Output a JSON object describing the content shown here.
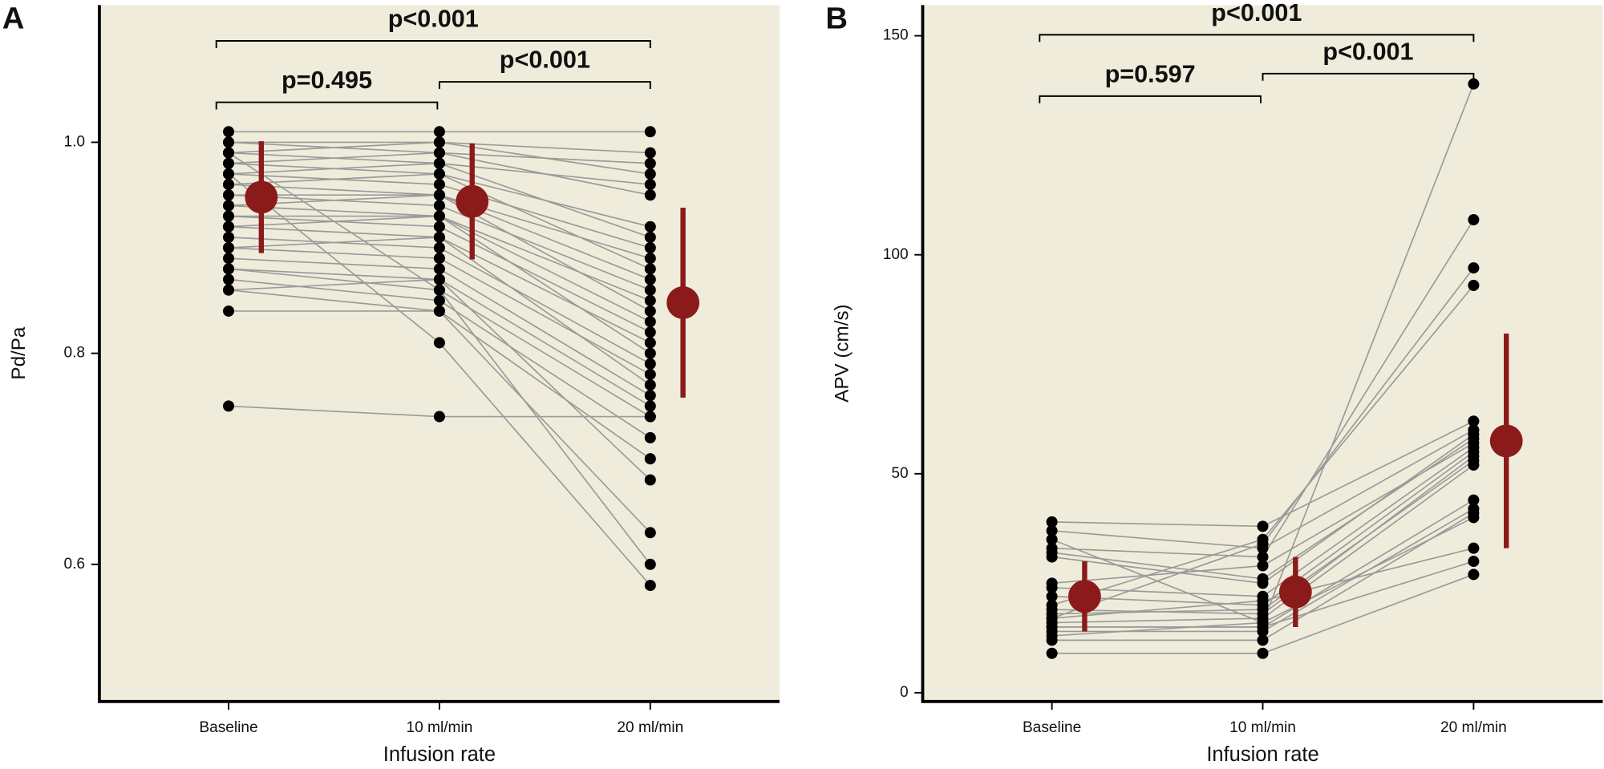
{
  "chart_data": [
    {
      "type": "paired-dot",
      "title": "A",
      "ylabel": "Pd/Pa",
      "xlabel": "Infusion rate",
      "categories": [
        "Baseline",
        "10 ml/min",
        "20 ml/min"
      ],
      "ylim": [
        0.47,
        1.13
      ],
      "yticks": [
        0.6,
        0.8,
        {
          "value": 1,
          "label": "1.0"
        }
      ],
      "point_color": "#000000",
      "line_color": "#9a9a9a",
      "mean_color": "#8b1a1a",
      "mean": [
        0.948,
        0.944,
        0.848
      ],
      "error": [
        0.053,
        0.055,
        0.09
      ],
      "comparisons": [
        {
          "from": 0,
          "to": 1,
          "label": "p=0.495"
        },
        {
          "from": 1,
          "to": 2,
          "label": "p<0.001"
        },
        {
          "from": 0,
          "to": 2,
          "label": "p<0.001"
        }
      ],
      "series": [
        {
          "values": [
            1.01,
            1.01,
            1.01
          ]
        },
        {
          "values": [
            1.0,
            1.0,
            0.99
          ]
        },
        {
          "values": [
            1.0,
            0.99,
            0.98
          ]
        },
        {
          "values": [
            0.99,
            1.0,
            0.97
          ]
        },
        {
          "values": [
            0.99,
            0.98,
            0.96
          ]
        },
        {
          "values": [
            0.98,
            0.99,
            0.95
          ]
        },
        {
          "values": [
            0.98,
            0.97,
            0.92
          ]
        },
        {
          "values": [
            0.97,
            0.98,
            0.91
          ]
        },
        {
          "values": [
            0.97,
            0.96,
            0.9
          ]
        },
        {
          "values": [
            0.96,
            0.95,
            0.89
          ]
        },
        {
          "values": [
            0.96,
            0.97,
            0.88
          ]
        },
        {
          "values": [
            0.95,
            0.95,
            0.87
          ]
        },
        {
          "values": [
            0.95,
            0.94,
            0.86
          ]
        },
        {
          "values": [
            0.94,
            0.93,
            0.85
          ]
        },
        {
          "values": [
            0.94,
            0.95,
            0.84
          ]
        },
        {
          "values": [
            0.93,
            0.93,
            0.83
          ]
        },
        {
          "values": [
            0.93,
            0.92,
            0.82
          ]
        },
        {
          "values": [
            0.92,
            0.91,
            0.81
          ]
        },
        {
          "values": [
            0.92,
            0.93,
            0.8
          ]
        },
        {
          "values": [
            0.91,
            0.9,
            0.79
          ]
        },
        {
          "values": [
            0.9,
            0.89,
            0.78
          ]
        },
        {
          "values": [
            0.9,
            0.91,
            0.77
          ]
        },
        {
          "values": [
            0.89,
            0.88,
            0.76
          ]
        },
        {
          "values": [
            0.88,
            0.87,
            0.75
          ]
        },
        {
          "values": [
            0.88,
            0.86,
            0.74
          ]
        },
        {
          "values": [
            0.87,
            0.85,
            0.72
          ]
        },
        {
          "values": [
            0.86,
            0.84,
            0.7
          ]
        },
        {
          "values": [
            0.86,
            0.87,
            0.68
          ]
        },
        {
          "values": [
            0.84,
            0.84,
            0.63
          ]
        },
        {
          "values": [
            0.99,
            0.86,
            0.6
          ]
        },
        {
          "values": [
            0.97,
            0.81,
            0.58
          ]
        },
        {
          "values": [
            0.75,
            0.74,
            0.74
          ]
        }
      ]
    },
    {
      "type": "paired-dot",
      "title": "B",
      "ylabel": "APV (cm/s)",
      "xlabel": "Infusion rate",
      "categories": [
        "Baseline",
        "10 ml/min",
        "20 ml/min"
      ],
      "ylim": [
        -2,
        157
      ],
      "yticks": [
        0,
        50,
        100,
        150
      ],
      "point_color": "#000000",
      "line_color": "#9a9a9a",
      "mean_color": "#8b1a1a",
      "mean": [
        22,
        23,
        57.5
      ],
      "error": [
        8,
        8,
        24.5
      ],
      "comparisons": [
        {
          "from": 0,
          "to": 1,
          "label": "p=0.597"
        },
        {
          "from": 1,
          "to": 2,
          "label": "p<0.001"
        },
        {
          "from": 0,
          "to": 2,
          "label": "p<0.001"
        }
      ],
      "series": [
        {
          "values": [
            35,
            16,
            139
          ]
        },
        {
          "values": [
            33,
            31,
            108
          ]
        },
        {
          "values": [
            17,
            34,
            97
          ]
        },
        {
          "values": [
            20,
            35,
            93
          ]
        },
        {
          "values": [
            39,
            38,
            62
          ]
        },
        {
          "values": [
            37,
            33,
            60
          ]
        },
        {
          "values": [
            31,
            25,
            59
          ]
        },
        {
          "values": [
            25,
            29,
            57
          ]
        },
        {
          "values": [
            24,
            22,
            56
          ]
        },
        {
          "values": [
            22,
            20,
            55
          ]
        },
        {
          "values": [
            19,
            18,
            54
          ]
        },
        {
          "values": [
            18,
            19,
            53
          ]
        },
        {
          "values": [
            16,
            17,
            52
          ]
        },
        {
          "values": [
            15,
            15,
            44
          ]
        },
        {
          "values": [
            14,
            14,
            42
          ]
        },
        {
          "values": [
            13,
            16,
            40
          ]
        },
        {
          "values": [
            17,
            21,
            33
          ]
        },
        {
          "values": [
            15,
            15,
            30
          ]
        },
        {
          "values": [
            9,
            9,
            27
          ]
        },
        {
          "values": [
            32,
            26,
            58
          ]
        },
        {
          "values": [
            12,
            12,
            41
          ]
        }
      ]
    }
  ]
}
